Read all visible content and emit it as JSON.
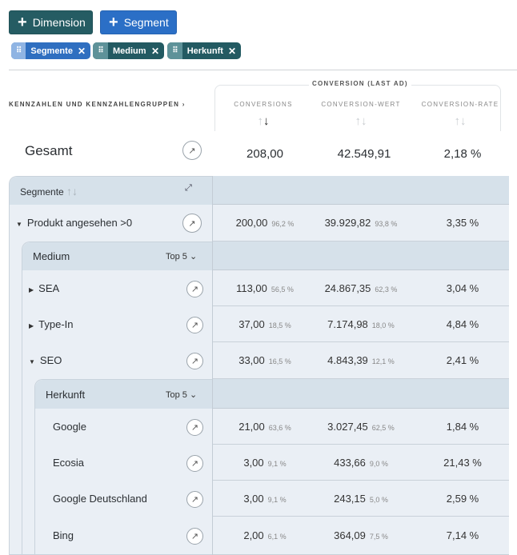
{
  "toolbar": {
    "dimension_label": "Dimension",
    "segment_label": "Segment"
  },
  "chips": [
    {
      "label": "Segmente",
      "color": "#2f6fc0"
    },
    {
      "label": "Medium",
      "color": "#235a62"
    },
    {
      "label": "Herkunft",
      "color": "#235a62"
    }
  ],
  "colors": {
    "dimension_button": "#255c63",
    "segment_button": "#2b6fc6",
    "row_bg": "#eaeff5",
    "header_bg": "#d6e1ea"
  },
  "metrics_link": "KENNZAHLEN UND KENNZAHLENGRUPPEN",
  "group_title": "CONVERSION (LAST AD)",
  "columns": [
    "CONVERSIONS",
    "CONVERSION-WERT",
    "CONVERSION-RATE"
  ],
  "sort_active_column": "CONVERSIONS",
  "total": {
    "label": "Gesamt",
    "values": [
      "208,00",
      "42.549,91",
      "2,18 %"
    ]
  },
  "segments_header": "Segmente",
  "medium_header": "Medium",
  "herkunft_header": "Herkunft",
  "top_label": "Top 5",
  "rows": [
    {
      "label": "Produkt angesehen >0",
      "expand": "expanded",
      "conv": "200,00",
      "conv_pct": "96,2 %",
      "wert": "39.929,82",
      "wert_pct": "93,8 %",
      "rate": "3,35 %"
    },
    {
      "label": "SEA",
      "expand": "collapsed",
      "conv": "113,00",
      "conv_pct": "56,5 %",
      "wert": "24.867,35",
      "wert_pct": "62,3 %",
      "rate": "3,04 %"
    },
    {
      "label": "Type-In",
      "expand": "collapsed",
      "conv": "37,00",
      "conv_pct": "18,5 %",
      "wert": "7.174,98",
      "wert_pct": "18,0 %",
      "rate": "4,84 %"
    },
    {
      "label": "SEO",
      "expand": "expanded",
      "conv": "33,00",
      "conv_pct": "16,5 %",
      "wert": "4.843,39",
      "wert_pct": "12,1 %",
      "rate": "2,41 %"
    },
    {
      "label": "Google",
      "expand": "none",
      "conv": "21,00",
      "conv_pct": "63,6 %",
      "wert": "3.027,45",
      "wert_pct": "62,5 %",
      "rate": "1,84 %"
    },
    {
      "label": "Ecosia",
      "expand": "none",
      "conv": "3,00",
      "conv_pct": "9,1 %",
      "wert": "433,66",
      "wert_pct": "9,0 %",
      "rate": "21,43 %"
    },
    {
      "label": "Google Deutschland",
      "expand": "none",
      "conv": "3,00",
      "conv_pct": "9,1 %",
      "wert": "243,15",
      "wert_pct": "5,0 %",
      "rate": "2,59 %"
    },
    {
      "label": "Bing",
      "expand": "none",
      "conv": "2,00",
      "conv_pct": "6,1 %",
      "wert": "364,09",
      "wert_pct": "7,5 %",
      "rate": "7,14 %"
    }
  ]
}
